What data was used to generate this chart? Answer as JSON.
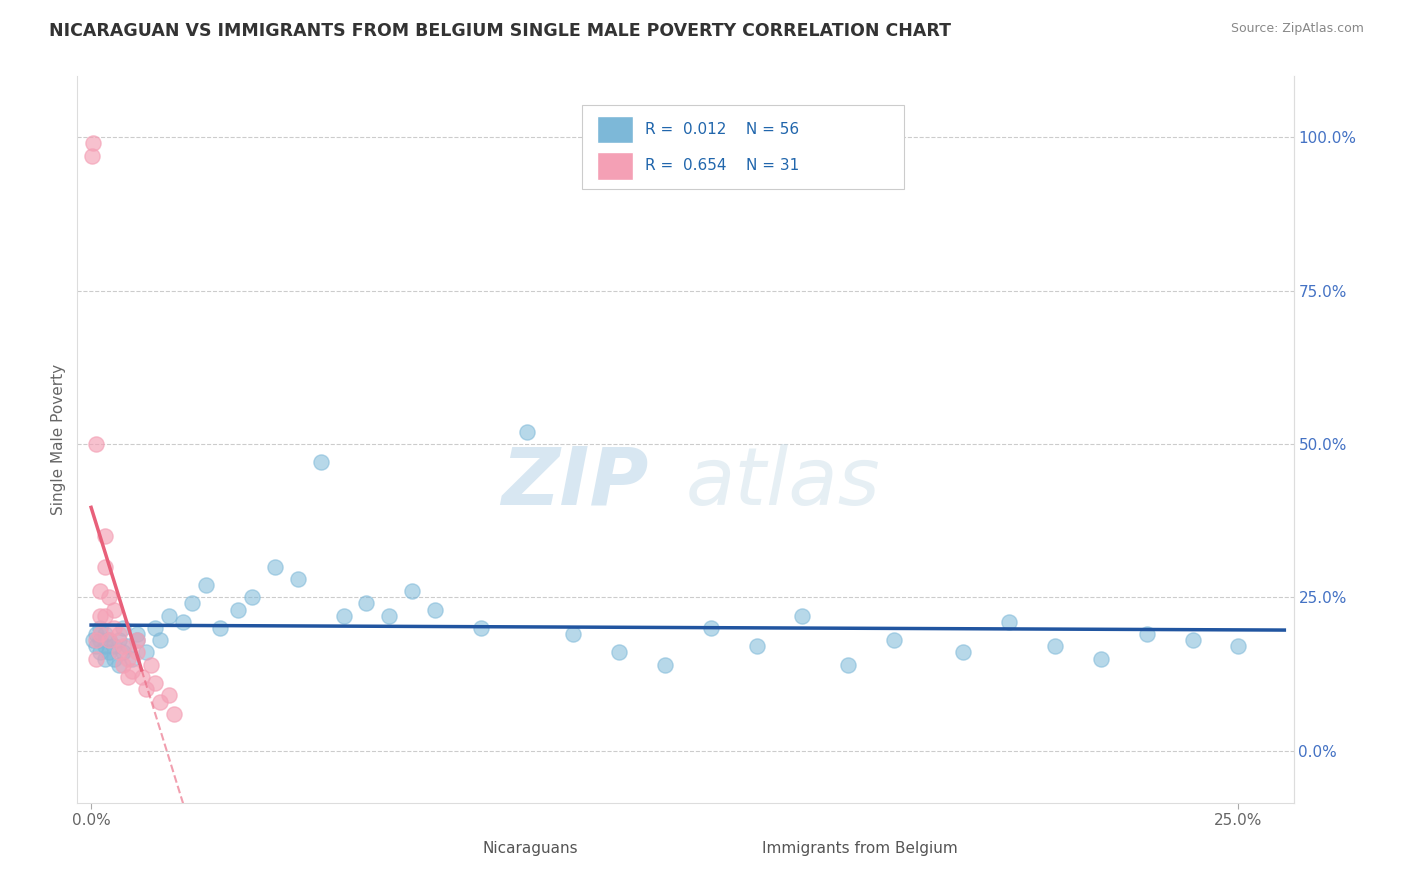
{
  "title": "NICARAGUAN VS IMMIGRANTS FROM BELGIUM SINGLE MALE POVERTY CORRELATION CHART",
  "source": "Source: ZipAtlas.com",
  "ylabel": "Single Male Poverty",
  "watermark_zip": "ZIP",
  "watermark_atlas": "atlas",
  "legend_text1": "R = 0.012   N = 56",
  "legend_text2": "R = 0.654   N = 31",
  "label1": "Nicaraguans",
  "label2": "Immigrants from Belgium",
  "color1": "#7db8d8",
  "color2": "#f4a0b5",
  "trend_color1": "#2155a0",
  "trend_color2": "#e8607a",
  "title_color": "#333333",
  "source_color": "#888888",
  "tick_color_x": "#666666",
  "tick_color_y": "#4472c4",
  "xlim": [
    -0.003,
    0.262
  ],
  "ylim": [
    -0.085,
    1.1
  ],
  "blue_x": [
    0.0005,
    0.001,
    0.001,
    0.002,
    0.002,
    0.002,
    0.003,
    0.003,
    0.003,
    0.004,
    0.004,
    0.005,
    0.005,
    0.006,
    0.006,
    0.007,
    0.007,
    0.008,
    0.009,
    0.01,
    0.01,
    0.012,
    0.014,
    0.015,
    0.017,
    0.02,
    0.022,
    0.025,
    0.028,
    0.032,
    0.035,
    0.04,
    0.045,
    0.05,
    0.055,
    0.06,
    0.065,
    0.07,
    0.075,
    0.085,
    0.095,
    0.105,
    0.115,
    0.125,
    0.135,
    0.145,
    0.155,
    0.165,
    0.175,
    0.19,
    0.2,
    0.21,
    0.22,
    0.23,
    0.24,
    0.25
  ],
  "blue_y": [
    0.18,
    0.17,
    0.19,
    0.16,
    0.18,
    0.2,
    0.15,
    0.17,
    0.19,
    0.16,
    0.18,
    0.15,
    0.17,
    0.14,
    0.18,
    0.16,
    0.2,
    0.17,
    0.15,
    0.19,
    0.18,
    0.16,
    0.2,
    0.18,
    0.22,
    0.21,
    0.24,
    0.27,
    0.2,
    0.23,
    0.25,
    0.3,
    0.28,
    0.47,
    0.22,
    0.24,
    0.22,
    0.26,
    0.23,
    0.2,
    0.52,
    0.19,
    0.16,
    0.14,
    0.2,
    0.17,
    0.22,
    0.14,
    0.18,
    0.16,
    0.21,
    0.17,
    0.15,
    0.19,
    0.18,
    0.17
  ],
  "pink_x": [
    0.0003,
    0.0005,
    0.001,
    0.001,
    0.001,
    0.002,
    0.002,
    0.002,
    0.003,
    0.003,
    0.003,
    0.004,
    0.004,
    0.005,
    0.005,
    0.006,
    0.006,
    0.007,
    0.007,
    0.008,
    0.008,
    0.009,
    0.01,
    0.01,
    0.011,
    0.012,
    0.013,
    0.014,
    0.015,
    0.017,
    0.018
  ],
  "pink_y": [
    0.97,
    0.99,
    0.5,
    0.18,
    0.15,
    0.26,
    0.22,
    0.19,
    0.35,
    0.3,
    0.22,
    0.25,
    0.18,
    0.2,
    0.23,
    0.16,
    0.19,
    0.14,
    0.17,
    0.12,
    0.15,
    0.13,
    0.16,
    0.18,
    0.12,
    0.1,
    0.14,
    0.11,
    0.08,
    0.09,
    0.06
  ],
  "trend1_x_start": 0.0,
  "trend1_x_end": 0.26,
  "trend2_x_start": -0.001,
  "trend2_x_end": 0.022,
  "trend2_dashed_x_start": 0.011,
  "trend2_dashed_x_end": 0.022
}
